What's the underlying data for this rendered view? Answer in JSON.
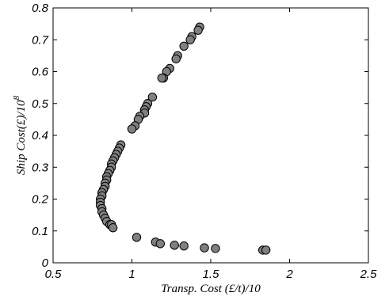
{
  "chart_data": {
    "type": "scatter",
    "title": "",
    "xlabel": "Transp. Cost (£/t)/10",
    "ylabel_main": "Ship Cost(£)/10",
    "ylabel_exponent": "8",
    "xlim": [
      0.5,
      2.5
    ],
    "ylim": [
      0,
      0.8
    ],
    "xticks": [
      "0.5",
      "1",
      "1.5",
      "2",
      "2.5"
    ],
    "yticks": [
      "0",
      "0.1",
      "0.2",
      "0.3",
      "0.4",
      "0.5",
      "0.6",
      "0.7",
      "0.8"
    ],
    "grid": false,
    "legend": "none",
    "marker_fill": "#808080",
    "marker_edge": "#000000",
    "series": [
      {
        "points": [
          [
            1.43,
            0.74
          ],
          [
            1.42,
            0.73
          ],
          [
            1.38,
            0.71
          ],
          [
            1.37,
            0.7
          ],
          [
            1.33,
            0.68
          ],
          [
            1.29,
            0.65
          ],
          [
            1.28,
            0.64
          ],
          [
            1.24,
            0.61
          ],
          [
            1.22,
            0.6
          ],
          [
            1.2,
            0.58
          ],
          [
            1.19,
            0.58
          ],
          [
            1.13,
            0.52
          ],
          [
            1.1,
            0.5
          ],
          [
            1.09,
            0.49
          ],
          [
            1.08,
            0.48
          ],
          [
            1.08,
            0.47
          ],
          [
            1.05,
            0.46
          ],
          [
            1.04,
            0.45
          ],
          [
            1.02,
            0.43
          ],
          [
            1.0,
            0.42
          ],
          [
            0.93,
            0.37
          ],
          [
            0.92,
            0.36
          ],
          [
            0.91,
            0.35
          ],
          [
            0.9,
            0.34
          ],
          [
            0.89,
            0.33
          ],
          [
            0.88,
            0.32
          ],
          [
            0.87,
            0.31
          ],
          [
            0.87,
            0.3
          ],
          [
            0.86,
            0.29
          ],
          [
            0.85,
            0.28
          ],
          [
            0.84,
            0.27
          ],
          [
            0.84,
            0.26
          ],
          [
            0.83,
            0.25
          ],
          [
            0.83,
            0.24
          ],
          [
            0.82,
            0.23
          ],
          [
            0.81,
            0.22
          ],
          [
            0.81,
            0.21
          ],
          [
            0.8,
            0.2
          ],
          [
            0.8,
            0.19
          ],
          [
            0.8,
            0.18
          ],
          [
            0.81,
            0.17
          ],
          [
            0.81,
            0.16
          ],
          [
            0.82,
            0.15
          ],
          [
            0.83,
            0.14
          ],
          [
            0.84,
            0.13
          ],
          [
            0.86,
            0.12
          ],
          [
            0.87,
            0.12
          ],
          [
            0.88,
            0.11
          ],
          [
            1.03,
            0.08
          ],
          [
            1.15,
            0.065
          ],
          [
            1.18,
            0.06
          ],
          [
            1.27,
            0.055
          ],
          [
            1.33,
            0.053
          ],
          [
            1.46,
            0.047
          ],
          [
            1.53,
            0.045
          ],
          [
            1.83,
            0.04
          ],
          [
            1.85,
            0.04
          ]
        ]
      }
    ]
  }
}
